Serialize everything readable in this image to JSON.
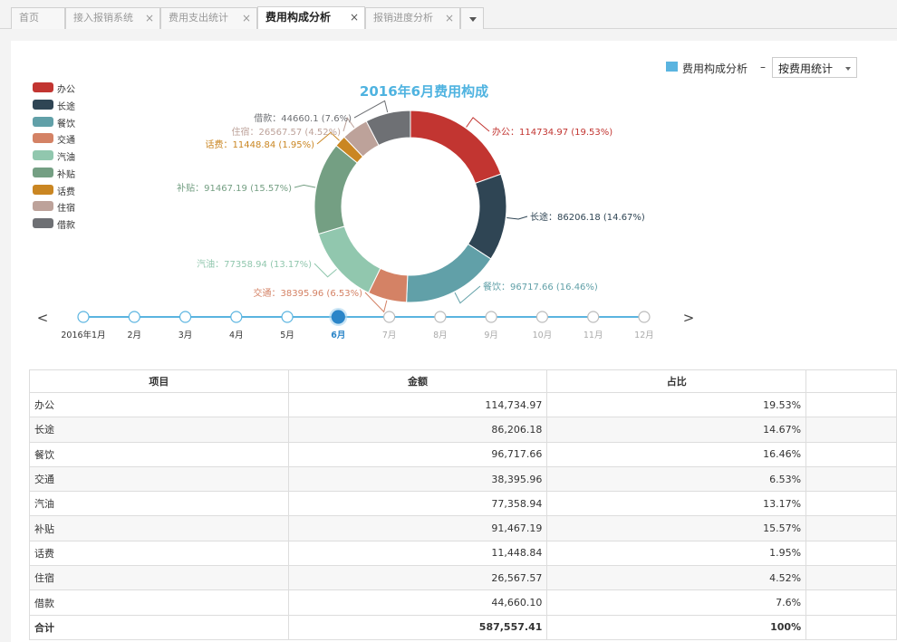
{
  "tabs": [
    {
      "label": "首页",
      "closable": false,
      "active": false
    },
    {
      "label": "接入报销系统",
      "closable": true,
      "active": false
    },
    {
      "label": "费用支出统计",
      "closable": true,
      "active": false
    },
    {
      "label": "费用构成分析",
      "closable": true,
      "active": true
    },
    {
      "label": "报销进度分析",
      "closable": true,
      "active": false
    }
  ],
  "close_glyph": "×",
  "selector": {
    "legend_label": "费用构成分析",
    "dash": "–",
    "dropdown_value": "按费用统计"
  },
  "colors": {
    "accent": "#5ab4e0",
    "timeline": "#5ab4e0",
    "timeline_active": "#2b85c8"
  },
  "chart_data": {
    "type": "pie",
    "subtype": "donut",
    "title": "2016年6月费用构成",
    "legend_position": "left",
    "slices": [
      {
        "name": "办公",
        "value": 114734.97,
        "percent": "19.53%",
        "label": "办公：114734.97 (19.53%)",
        "color": "#c23531"
      },
      {
        "name": "长途",
        "value": 86206.18,
        "percent": "14.67%",
        "label": "长途：86206.18 (14.67%)",
        "color": "#2f4554"
      },
      {
        "name": "餐饮",
        "value": 96717.66,
        "percent": "16.46%",
        "label": "餐饮：96717.66 (16.46%)",
        "color": "#61a0a8"
      },
      {
        "name": "交通",
        "value": 38395.96,
        "percent": "6.53%",
        "label": "交通：38395.96 (6.53%)",
        "color": "#d48265"
      },
      {
        "name": "汽油",
        "value": 77358.94,
        "percent": "13.17%",
        "label": "汽油：77358.94 (13.17%)",
        "color": "#91c7ae"
      },
      {
        "name": "补贴",
        "value": 91467.19,
        "percent": "15.57%",
        "label": "补贴：91467.19 (15.57%)",
        "color": "#749f83"
      },
      {
        "name": "话费",
        "value": 11448.84,
        "percent": "1.95%",
        "label": "话费：11448.84 (1.95%)",
        "color": "#ca8622"
      },
      {
        "name": "住宿",
        "value": 26567.57,
        "percent": "4.52%",
        "label": "住宿：26567.57 (4.52%)",
        "color": "#bda29a"
      },
      {
        "name": "借款",
        "value": 44660.1,
        "percent": "7.6%",
        "label": "借款：44660.1 (7.6%)",
        "color": "#6e7074"
      }
    ]
  },
  "timeline": {
    "prev_glyph": "<",
    "next_glyph": ">",
    "labels": [
      "2016年1月",
      "2月",
      "3月",
      "4月",
      "5月",
      "6月",
      "7月",
      "8月",
      "9月",
      "10月",
      "11月",
      "12月"
    ],
    "active_index": 5
  },
  "table": {
    "headers": [
      "项目",
      "金额",
      "占比"
    ],
    "rows": [
      [
        "办公",
        "114,734.97",
        "19.53%"
      ],
      [
        "长途",
        "86,206.18",
        "14.67%"
      ],
      [
        "餐饮",
        "96,717.66",
        "16.46%"
      ],
      [
        "交通",
        "38,395.96",
        "6.53%"
      ],
      [
        "汽油",
        "77,358.94",
        "13.17%"
      ],
      [
        "补贴",
        "91,467.19",
        "15.57%"
      ],
      [
        "话费",
        "11,448.84",
        "1.95%"
      ],
      [
        "住宿",
        "26,567.57",
        "4.52%"
      ],
      [
        "借款",
        "44,660.10",
        "7.6%"
      ]
    ],
    "total": [
      "合计",
      "587,557.41",
      "100%"
    ]
  }
}
